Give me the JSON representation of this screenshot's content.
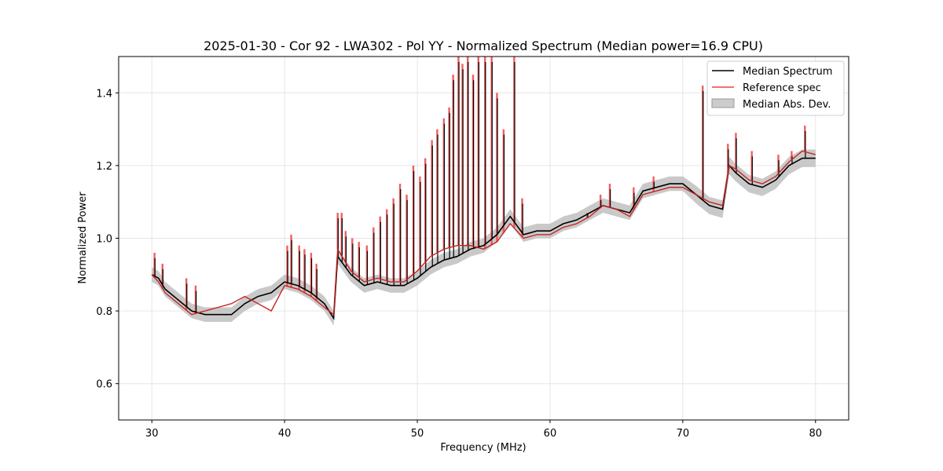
{
  "chart_data": {
    "type": "line",
    "title": "2025-01-30 - Cor 92 - LWA302 - Pol YY - Normalized Spectrum (Median power=16.9 CPU)",
    "xlabel": "Frequency (MHz)",
    "ylabel": "Normalized Power",
    "xlim": [
      27.5,
      82.5
    ],
    "ylim": [
      0.5,
      1.5
    ],
    "xticks": [
      30,
      40,
      50,
      60,
      70,
      80
    ],
    "yticks": [
      0.6,
      0.8,
      1.0,
      1.2,
      1.4
    ],
    "xtick_labels": [
      "30",
      "40",
      "50",
      "60",
      "70",
      "80"
    ],
    "ytick_labels": [
      "0.6",
      "0.8",
      "1.0",
      "1.2",
      "1.4"
    ],
    "grid": true,
    "legend_position": "top-right",
    "legend": [
      "Median Spectrum",
      "Reference spec",
      "Median Abs. Dev."
    ],
    "colors": {
      "median": "#000000",
      "reference": "#ee4444",
      "mad": "#bbbbbb"
    },
    "series": [
      {
        "name": "Median Spectrum",
        "x": [
          30.0,
          30.5,
          31.0,
          32.0,
          33.0,
          34.0,
          35.0,
          36.0,
          37.0,
          38.0,
          39.0,
          40.0,
          41.0,
          42.0,
          43.0,
          43.7,
          44.0,
          45.0,
          46.0,
          47.0,
          48.0,
          49.0,
          50.0,
          51.0,
          52.0,
          53.0,
          54.0,
          55.0,
          56.0,
          57.0,
          58.0,
          59.0,
          60.0,
          61.0,
          62.0,
          63.0,
          64.0,
          65.0,
          66.0,
          67.0,
          68.0,
          69.0,
          70.0,
          71.0,
          72.0,
          73.0,
          73.5,
          74.0,
          75.0,
          76.0,
          77.0,
          78.0,
          79.0,
          80.0
        ],
        "values": [
          0.9,
          0.89,
          0.86,
          0.83,
          0.8,
          0.79,
          0.79,
          0.79,
          0.82,
          0.84,
          0.85,
          0.88,
          0.87,
          0.85,
          0.82,
          0.78,
          0.95,
          0.9,
          0.87,
          0.88,
          0.87,
          0.87,
          0.89,
          0.92,
          0.94,
          0.95,
          0.97,
          0.98,
          1.01,
          1.06,
          1.01,
          1.02,
          1.02,
          1.04,
          1.05,
          1.07,
          1.09,
          1.08,
          1.07,
          1.13,
          1.14,
          1.15,
          1.15,
          1.12,
          1.09,
          1.08,
          1.2,
          1.18,
          1.15,
          1.14,
          1.16,
          1.2,
          1.22,
          1.22
        ]
      },
      {
        "name": "Reference spec",
        "x": [
          30.0,
          30.5,
          31.0,
          32.0,
          33.0,
          34.0,
          35.0,
          36.0,
          37.0,
          38.0,
          39.0,
          40.0,
          41.0,
          42.0,
          43.0,
          43.7,
          44.0,
          45.0,
          46.0,
          47.0,
          48.0,
          49.0,
          50.0,
          51.0,
          52.0,
          53.0,
          54.0,
          55.0,
          56.0,
          57.0,
          58.0,
          59.0,
          60.0,
          61.0,
          62.0,
          63.0,
          64.0,
          65.0,
          66.0,
          67.0,
          68.0,
          69.0,
          70.0,
          71.0,
          72.0,
          73.0,
          73.5,
          74.0,
          75.0,
          76.0,
          77.0,
          78.0,
          79.0,
          80.0
        ],
        "values": [
          0.9,
          0.88,
          0.85,
          0.82,
          0.79,
          0.8,
          0.81,
          0.82,
          0.84,
          0.82,
          0.8,
          0.87,
          0.86,
          0.84,
          0.81,
          0.79,
          0.97,
          0.91,
          0.88,
          0.89,
          0.88,
          0.88,
          0.91,
          0.95,
          0.97,
          0.98,
          0.98,
          0.97,
          0.99,
          1.04,
          1.0,
          1.01,
          1.01,
          1.03,
          1.04,
          1.06,
          1.09,
          1.08,
          1.06,
          1.12,
          1.13,
          1.14,
          1.14,
          1.12,
          1.1,
          1.09,
          1.2,
          1.19,
          1.16,
          1.15,
          1.17,
          1.21,
          1.24,
          1.23
        ]
      }
    ],
    "spikes": [
      {
        "x": 30.2,
        "y": 0.96
      },
      {
        "x": 30.8,
        "y": 0.93
      },
      {
        "x": 32.6,
        "y": 0.89
      },
      {
        "x": 33.3,
        "y": 0.87
      },
      {
        "x": 40.2,
        "y": 0.98
      },
      {
        "x": 40.5,
        "y": 1.01
      },
      {
        "x": 41.1,
        "y": 0.98
      },
      {
        "x": 41.5,
        "y": 0.97
      },
      {
        "x": 42.0,
        "y": 0.96
      },
      {
        "x": 42.4,
        "y": 0.93
      },
      {
        "x": 44.0,
        "y": 1.07
      },
      {
        "x": 44.3,
        "y": 1.07
      },
      {
        "x": 44.6,
        "y": 1.02
      },
      {
        "x": 45.1,
        "y": 1.0
      },
      {
        "x": 45.6,
        "y": 0.99
      },
      {
        "x": 46.2,
        "y": 0.98
      },
      {
        "x": 46.7,
        "y": 1.03
      },
      {
        "x": 47.2,
        "y": 1.06
      },
      {
        "x": 47.7,
        "y": 1.08
      },
      {
        "x": 48.2,
        "y": 1.11
      },
      {
        "x": 48.7,
        "y": 1.15
      },
      {
        "x": 49.2,
        "y": 1.12
      },
      {
        "x": 49.7,
        "y": 1.2
      },
      {
        "x": 50.2,
        "y": 1.17
      },
      {
        "x": 50.6,
        "y": 1.22
      },
      {
        "x": 51.1,
        "y": 1.27
      },
      {
        "x": 51.5,
        "y": 1.3
      },
      {
        "x": 52.0,
        "y": 1.33
      },
      {
        "x": 52.4,
        "y": 1.36
      },
      {
        "x": 52.7,
        "y": 1.45
      },
      {
        "x": 53.1,
        "y": 1.5
      },
      {
        "x": 53.4,
        "y": 1.48
      },
      {
        "x": 53.8,
        "y": 1.5
      },
      {
        "x": 54.2,
        "y": 1.45
      },
      {
        "x": 54.6,
        "y": 1.5
      },
      {
        "x": 55.1,
        "y": 1.5
      },
      {
        "x": 55.6,
        "y": 1.5
      },
      {
        "x": 56.0,
        "y": 1.4
      },
      {
        "x": 56.5,
        "y": 1.3
      },
      {
        "x": 57.3,
        "y": 1.5
      },
      {
        "x": 57.9,
        "y": 1.11
      },
      {
        "x": 62.8,
        "y": 1.07
      },
      {
        "x": 63.8,
        "y": 1.12
      },
      {
        "x": 64.5,
        "y": 1.15
      },
      {
        "x": 66.3,
        "y": 1.14
      },
      {
        "x": 67.8,
        "y": 1.17
      },
      {
        "x": 71.5,
        "y": 1.42
      },
      {
        "x": 73.4,
        "y": 1.26
      },
      {
        "x": 74.0,
        "y": 1.29
      },
      {
        "x": 75.2,
        "y": 1.24
      },
      {
        "x": 77.2,
        "y": 1.23
      },
      {
        "x": 78.2,
        "y": 1.24
      },
      {
        "x": 79.2,
        "y": 1.31
      }
    ]
  }
}
